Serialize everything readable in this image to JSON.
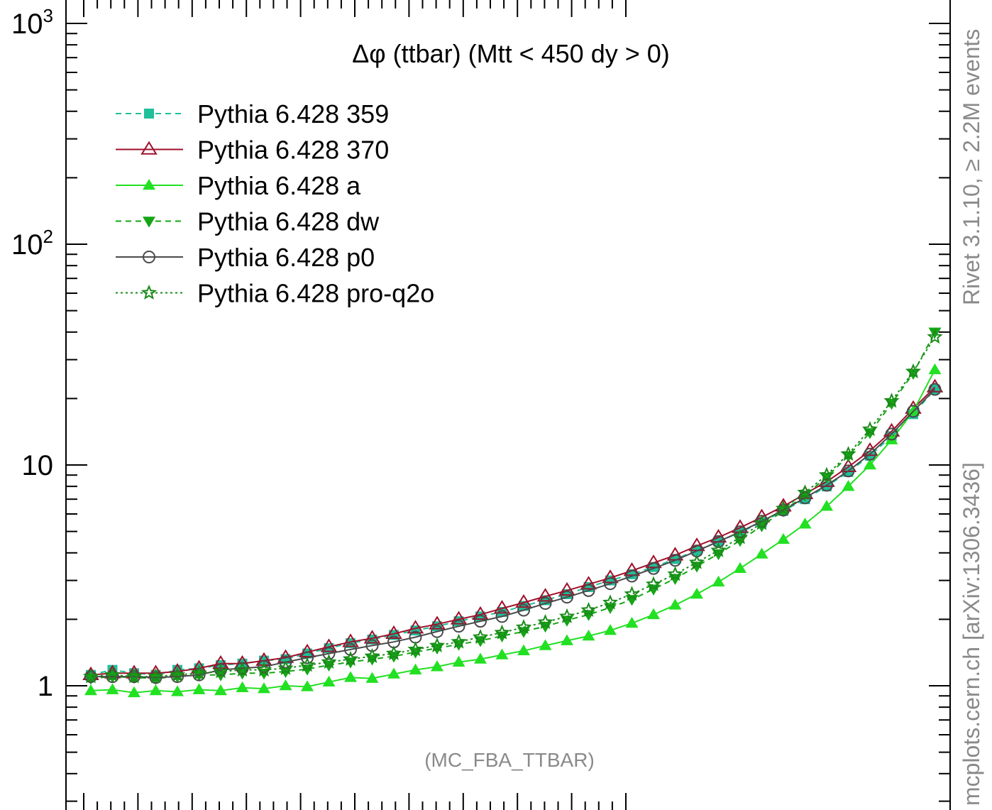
{
  "chart_data": {
    "type": "line",
    "title": "Δφ (ttbar) (Mtt < 450 dy > 0)",
    "xlabel": "",
    "ylabel": "",
    "y_scale": "log",
    "ylim": [
      0.33,
      1100
    ],
    "x": [
      1,
      2,
      3,
      4,
      5,
      6,
      7,
      8,
      9,
      10,
      11,
      12,
      13,
      14,
      15,
      16,
      17,
      18,
      19,
      20,
      21,
      22,
      23,
      24,
      25,
      26,
      27,
      28,
      29,
      30,
      31,
      32,
      33,
      34,
      35,
      36,
      37,
      38,
      39,
      40
    ],
    "y_tick_labels": [
      {
        "value": 1000,
        "base": "10",
        "exp": "3"
      },
      {
        "value": 100,
        "base": "10",
        "exp": "2"
      },
      {
        "value": 10,
        "base": "10",
        "exp": ""
      },
      {
        "value": 1,
        "base": "1",
        "exp": ""
      }
    ],
    "legend_position": "top-left",
    "series": [
      {
        "name": "Pythia 6.428 359",
        "color": "#1fbf9a",
        "dash": "dashed",
        "marker": "square",
        "values": [
          1.12,
          1.18,
          1.14,
          1.12,
          1.18,
          1.2,
          1.24,
          1.26,
          1.3,
          1.32,
          1.4,
          1.48,
          1.56,
          1.62,
          1.7,
          1.78,
          1.86,
          1.96,
          2.06,
          2.16,
          2.3,
          2.44,
          2.6,
          2.8,
          3.0,
          3.2,
          3.45,
          3.75,
          4.1,
          4.5,
          4.95,
          5.5,
          6.2,
          7.0,
          8.0,
          9.3,
          11.0,
          13.5,
          17.0,
          22.0
        ]
      },
      {
        "name": "Pythia 6.428 370",
        "color": "#a0102a",
        "dash": "solid",
        "marker": "triangle-open",
        "values": [
          1.12,
          1.14,
          1.14,
          1.14,
          1.16,
          1.2,
          1.26,
          1.26,
          1.3,
          1.34,
          1.42,
          1.5,
          1.58,
          1.64,
          1.72,
          1.82,
          1.9,
          2.0,
          2.1,
          2.24,
          2.38,
          2.54,
          2.7,
          2.88,
          3.08,
          3.32,
          3.6,
          3.9,
          4.3,
          4.7,
          5.2,
          5.8,
          6.5,
          7.4,
          8.4,
          9.8,
          11.6,
          14.2,
          18.0,
          22.5
        ]
      },
      {
        "name": "Pythia 6.428 a",
        "color": "#22e022",
        "dash": "solid",
        "marker": "triangle",
        "values": [
          0.95,
          0.96,
          0.93,
          0.95,
          0.94,
          0.96,
          0.95,
          0.98,
          0.97,
          1.0,
          0.99,
          1.04,
          1.09,
          1.08,
          1.13,
          1.18,
          1.22,
          1.28,
          1.32,
          1.38,
          1.44,
          1.52,
          1.6,
          1.68,
          1.78,
          1.92,
          2.1,
          2.32,
          2.6,
          2.95,
          3.4,
          3.95,
          4.6,
          5.4,
          6.5,
          8.0,
          10.0,
          13.0,
          17.5,
          27.0
        ]
      },
      {
        "name": "Pythia 6.428 dw",
        "color": "#15a515",
        "dash": "dashed",
        "marker": "triangle-down",
        "values": [
          1.08,
          1.1,
          1.09,
          1.08,
          1.1,
          1.12,
          1.12,
          1.14,
          1.14,
          1.16,
          1.19,
          1.24,
          1.28,
          1.32,
          1.36,
          1.42,
          1.48,
          1.54,
          1.6,
          1.68,
          1.76,
          1.86,
          1.98,
          2.1,
          2.26,
          2.46,
          2.74,
          3.06,
          3.48,
          3.96,
          4.55,
          5.3,
          6.2,
          7.3,
          8.8,
          11.0,
          14.0,
          19.0,
          26.0,
          40.0
        ]
      },
      {
        "name": "Pythia 6.428 p0",
        "color": "#4a4a4a",
        "dash": "solid",
        "marker": "circle-open",
        "values": [
          1.1,
          1.1,
          1.1,
          1.09,
          1.1,
          1.12,
          1.18,
          1.2,
          1.22,
          1.28,
          1.34,
          1.4,
          1.46,
          1.52,
          1.58,
          1.66,
          1.76,
          1.86,
          1.96,
          2.06,
          2.2,
          2.36,
          2.52,
          2.7,
          2.9,
          3.14,
          3.4,
          3.7,
          4.08,
          4.5,
          4.98,
          5.56,
          6.25,
          7.1,
          8.1,
          9.4,
          11.2,
          13.8,
          17.5,
          22.0
        ]
      },
      {
        "name": "Pythia 6.428 pro-q2o",
        "color": "#1a8a1a",
        "dash": "dotted",
        "marker": "star-open",
        "values": [
          1.1,
          1.12,
          1.1,
          1.1,
          1.12,
          1.14,
          1.16,
          1.18,
          1.18,
          1.2,
          1.24,
          1.28,
          1.32,
          1.36,
          1.4,
          1.46,
          1.52,
          1.58,
          1.66,
          1.74,
          1.84,
          1.94,
          2.06,
          2.2,
          2.38,
          2.6,
          2.88,
          3.2,
          3.62,
          4.1,
          4.7,
          5.45,
          6.35,
          7.5,
          9.0,
          11.2,
          14.5,
          19.5,
          26.5,
          38.0
        ]
      }
    ]
  },
  "annotations": {
    "footer": "(MC_FBA_TTBAR)",
    "side_top": "Rivet 3.1.10, ≥ 2.2M events",
    "side_bottom": "mcplots.cern.ch [arXiv:1306.3436]"
  }
}
